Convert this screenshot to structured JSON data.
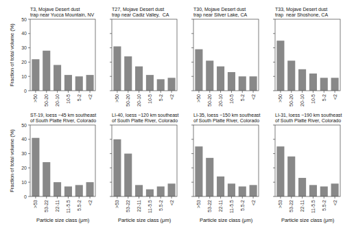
{
  "chart_data": [
    {
      "type": "bar",
      "title": "T3, Mojave Desert dust\ntrap near Yucca Mountain, NV",
      "categories": [
        ">50",
        "50-20",
        "20-10",
        "10-5",
        "5-2",
        "<2"
      ],
      "values": [
        22,
        28,
        18,
        11,
        10,
        11
      ],
      "color": "#888888",
      "ylim": [
        0,
        50
      ],
      "yticks": [
        0,
        10,
        20,
        30,
        40,
        50
      ],
      "ylabel": "Fraction of total volume (%)"
    },
    {
      "type": "bar",
      "title": "T27, Mojave Desert dust\ntrap near Cadiz Valley,  CA",
      "categories": [
        ">50",
        "50-20",
        "20-10",
        "10-5",
        "5-2",
        "<2"
      ],
      "values": [
        31,
        24,
        17,
        11,
        8,
        9
      ],
      "color": "#888888",
      "ylim": [
        0,
        50
      ],
      "yticks": [
        0,
        10,
        20,
        30,
        40,
        50
      ],
      "tick_labels": "x"
    },
    {
      "type": "bar",
      "title": "T30, Mojave Desert dust\ntrap near Silver Lake, CA",
      "categories": [
        ">50",
        "50-20",
        "20-10",
        "10-5",
        "5-2",
        "<2"
      ],
      "values": [
        29,
        21,
        17,
        13,
        10,
        10
      ],
      "color": "#888888",
      "ylim": [
        0,
        50
      ],
      "yticks": [
        0,
        10,
        20,
        30,
        40,
        50
      ],
      "tick_labels": "x"
    },
    {
      "type": "bar",
      "title": "T33, Mojave Desert dust\ntrap  near Shoshone, CA",
      "categories": [
        ">50",
        "50-20",
        "20-10",
        "10-5",
        "5-2",
        "<2"
      ],
      "values": [
        35,
        21,
        15,
        12,
        9,
        9
      ],
      "color": "#888888",
      "ylim": [
        0,
        50
      ],
      "yticks": [
        0,
        10,
        20,
        30,
        40,
        50
      ],
      "tick_labels": "x"
    },
    {
      "type": "bar",
      "title": "ST-19, loess ~45 km southeast\nof South Platte River, Colorado",
      "categories": [
        ">53",
        "53-22",
        "22-11",
        "11-5.5",
        "5.5-2",
        "<2"
      ],
      "values": [
        41,
        24,
        10,
        7,
        8,
        10
      ],
      "color": "#888888",
      "ylim": [
        0,
        50
      ],
      "yticks": [
        0,
        10,
        20,
        30,
        40,
        50
      ],
      "ylabel": "Fraction of total volume (%)",
      "xlabel": "Particle size class (μm)"
    },
    {
      "type": "bar",
      "title": "LI-40, loess ~120 km southeast\nof South Platte River, Colorado",
      "categories": [
        ">53",
        "53-22",
        "22-11",
        "11-5.5",
        "5.5-2",
        "<2"
      ],
      "values": [
        40,
        30,
        8,
        5,
        7,
        9
      ],
      "color": "#888888",
      "ylim": [
        0,
        50
      ],
      "yticks": [
        0,
        10,
        20,
        30,
        40,
        50
      ],
      "tick_labels": "x",
      "xlabel": "Particle size class (μm)"
    },
    {
      "type": "bar",
      "title": "LI-35, loess ~150 km southeast\nof South Platte River, Colorado",
      "categories": [
        ">53",
        "53-22",
        "22-11",
        "11-5.5",
        "5.5-2",
        "<2"
      ],
      "values": [
        35,
        27,
        14,
        9,
        7,
        8
      ],
      "color": "#888888",
      "ylim": [
        0,
        50
      ],
      "yticks": [
        0,
        10,
        20,
        30,
        40,
        50
      ],
      "tick_labels": "x",
      "xlabel": "Particle size class (μm)"
    },
    {
      "type": "bar",
      "title": "LI-31, loess ~190 km southeast\nof South Platte River, Colorado",
      "categories": [
        ">53",
        "53-22",
        "22-11",
        "11-5.5",
        "5.5-2",
        "<2"
      ],
      "values": [
        35,
        28,
        13,
        8,
        7,
        9
      ],
      "color": "#888888",
      "ylim": [
        0,
        50
      ],
      "yticks": [
        0,
        10,
        20,
        30,
        40,
        50
      ],
      "tick_labels": "x",
      "xlabel": "Particle size class (μm)"
    }
  ]
}
